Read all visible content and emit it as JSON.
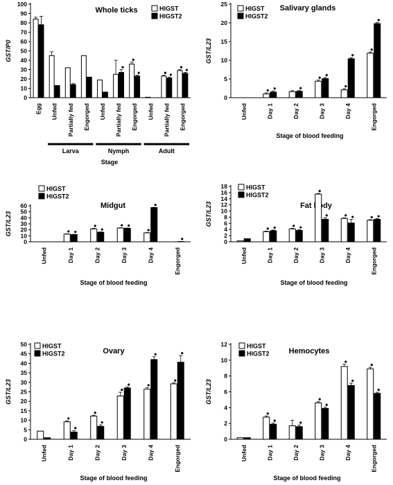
{
  "figure": {
    "legend_labels": [
      "HlGST",
      "HlGST2"
    ],
    "colors": {
      "HlGST": "#ffffff",
      "HlGST2": "#000000",
      "axis": "#000000"
    }
  },
  "chart_data": [
    {
      "type": "bar",
      "title": "Whole ticks",
      "ylabel": "GST/P0",
      "xlabel": "Stage",
      "ylim": [
        0,
        100
      ],
      "yticks": [
        0,
        10,
        20,
        30,
        40,
        50,
        60,
        70,
        80,
        90,
        100
      ],
      "categories": [
        "Egg",
        "Unfed",
        "Partially fed",
        "Engorged",
        "Unfed",
        "Partially fed",
        "Engorged",
        "Unfed",
        "Partially fed",
        "Engorged"
      ],
      "groups": [
        {
          "label": "Larva",
          "from": 1,
          "to": 3
        },
        {
          "label": "Nymph",
          "from": 4,
          "to": 6
        },
        {
          "label": "Adult",
          "from": 7,
          "to": 9
        }
      ],
      "series": [
        {
          "name": "HlGST",
          "values": [
            84,
            45,
            32,
            45,
            19,
            25,
            36,
            0.5,
            23,
            29
          ],
          "errors": [
            2,
            4,
            0,
            0,
            0,
            15,
            2,
            0,
            1,
            1
          ],
          "marked": [
            false,
            false,
            false,
            false,
            false,
            false,
            true,
            false,
            true,
            true
          ]
        },
        {
          "name": "HlGST2",
          "values": [
            78,
            13,
            14,
            22,
            6,
            27,
            23,
            0,
            21,
            26
          ],
          "errors": [
            9,
            0,
            1,
            0,
            0,
            3,
            1,
            0,
            1,
            1
          ],
          "marked": [
            false,
            false,
            false,
            false,
            false,
            true,
            true,
            false,
            true,
            true
          ]
        }
      ],
      "legend_position": "top-right"
    },
    {
      "type": "bar",
      "title": "Salivary glands",
      "ylabel": "GST/L23",
      "xlabel": "Stage of blood feeding",
      "ylim": [
        0,
        25
      ],
      "yticks": [
        0,
        5,
        10,
        15,
        20,
        25
      ],
      "categories": [
        "Unfed",
        "Day 1",
        "Day 2",
        "Day 3",
        "Day 4",
        "Engorged"
      ],
      "series": [
        {
          "name": "HlGST",
          "values": [
            0,
            1,
            1.6,
            4.4,
            2.1,
            11.9
          ],
          "errors": [
            0,
            0.3,
            0.3,
            0.3,
            0.3,
            0.3
          ],
          "marked": [
            false,
            true,
            false,
            true,
            true,
            true
          ]
        },
        {
          "name": "HlGST2",
          "values": [
            0,
            1.5,
            1.7,
            5.1,
            10.4,
            19.8
          ],
          "errors": [
            0,
            0.3,
            0.2,
            0.3,
            0.3,
            0.3
          ],
          "marked": [
            false,
            true,
            true,
            true,
            true,
            true
          ]
        }
      ],
      "legend_position": "top-left"
    },
    {
      "type": "bar",
      "title": "Midgut",
      "ylabel": "GST/L23",
      "xlabel": "Stage of blood feeding",
      "ylim": [
        0,
        60
      ],
      "yticks": [
        0,
        10,
        20,
        30,
        40,
        50,
        60
      ],
      "categories": [
        "Unfed",
        "Day 1",
        "Day 2",
        "Day 3",
        "Day 4",
        "Engorged"
      ],
      "series": [
        {
          "name": "HlGST",
          "values": [
            0,
            12.8,
            21.5,
            23,
            15,
            0
          ],
          "errors": [
            0,
            0.5,
            1,
            0.5,
            0.5,
            0
          ],
          "marked": [
            false,
            true,
            true,
            true,
            true,
            false
          ]
        },
        {
          "name": "HlGST2",
          "values": [
            0,
            12,
            16,
            22.5,
            57,
            0.5
          ],
          "errors": [
            0,
            0.5,
            0.5,
            0.5,
            0.5,
            0.2
          ],
          "marked": [
            false,
            true,
            true,
            true,
            true,
            true
          ]
        }
      ],
      "legend_position": "top-left"
    },
    {
      "type": "bar",
      "title": "Fat body",
      "ylabel": "GST/L23",
      "xlabel": "Stage of blood feeding",
      "ylim": [
        0,
        18
      ],
      "yticks": [
        0,
        2,
        4,
        6,
        8,
        10,
        12,
        14,
        16,
        18
      ],
      "categories": [
        "Unfed",
        "Day 1",
        "Day 2",
        "Day 3",
        "Day 4",
        "Engorged"
      ],
      "series": [
        {
          "name": "HlGST",
          "values": [
            0.3,
            3.3,
            4.2,
            15.5,
            7.6,
            7
          ],
          "errors": [
            0,
            0.2,
            0.2,
            0.2,
            0.2,
            0.2
          ],
          "marked": [
            false,
            true,
            true,
            true,
            true,
            true
          ]
        },
        {
          "name": "HlGST2",
          "values": [
            1,
            3.6,
            3.7,
            7.3,
            6.1,
            7.3
          ],
          "errors": [
            0,
            0.2,
            0.2,
            0.5,
            1.2,
            0.2
          ],
          "marked": [
            false,
            true,
            true,
            true,
            true,
            true
          ]
        }
      ],
      "legend_position": "top-left"
    },
    {
      "type": "bar",
      "title": "Ovary",
      "ylabel": "GST/L23",
      "xlabel": "Stage of blood feeding",
      "ylim": [
        0,
        50
      ],
      "yticks": [
        0,
        5,
        10,
        15,
        20,
        25,
        30,
        35,
        40,
        45,
        50
      ],
      "categories": [
        "Unfed",
        "Day 1",
        "Day 2",
        "Day 3",
        "Day 4",
        "Engorged"
      ],
      "series": [
        {
          "name": "HlGST",
          "values": [
            4.3,
            9.2,
            12.2,
            22.8,
            26.4,
            29.2
          ],
          "errors": [
            0,
            0.5,
            0.5,
            2,
            0.8,
            0.5
          ],
          "marked": [
            false,
            true,
            true,
            true,
            true,
            true
          ]
        },
        {
          "name": "HlGST2",
          "values": [
            0.8,
            3.8,
            6.8,
            27,
            42,
            40.6
          ],
          "errors": [
            0,
            0.8,
            0.8,
            0.5,
            1.5,
            3.5
          ],
          "marked": [
            false,
            true,
            true,
            true,
            true,
            true
          ]
        }
      ],
      "legend_position": "top-left"
    },
    {
      "type": "bar",
      "title": "Hemocytes",
      "ylabel": "GST/L23",
      "xlabel": "Stage of blood feeding",
      "ylim": [
        0,
        12
      ],
      "yticks": [
        0,
        2,
        4,
        6,
        8,
        10,
        12
      ],
      "categories": [
        "Unfed",
        "Day 1",
        "Day 2",
        "Day 3",
        "Day 4",
        "Engorged"
      ],
      "series": [
        {
          "name": "HlGST",
          "values": [
            0.2,
            2.8,
            1.7,
            4.6,
            9.2,
            8.9
          ],
          "errors": [
            0,
            0.15,
            0.7,
            0.15,
            0.3,
            0.2
          ],
          "marked": [
            false,
            true,
            false,
            true,
            true,
            true
          ]
        },
        {
          "name": "HlGST2",
          "values": [
            0.2,
            1.9,
            1.6,
            3.9,
            6.8,
            5.8
          ],
          "errors": [
            0,
            0.15,
            0.2,
            0.15,
            0.3,
            0.15
          ],
          "marked": [
            false,
            true,
            true,
            true,
            true,
            true
          ]
        }
      ],
      "legend_position": "top-left"
    }
  ]
}
